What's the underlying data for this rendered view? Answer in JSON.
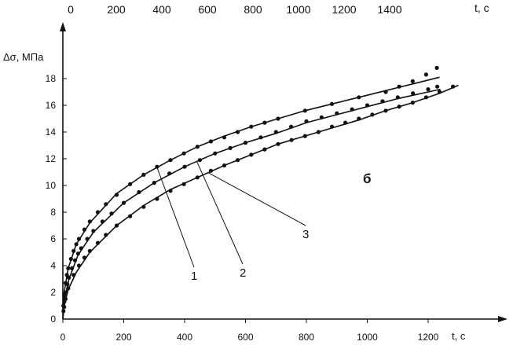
{
  "chart_data": {
    "type": "scatter",
    "title": "",
    "ylabel": "Δσ, МПа",
    "xlabel_bottom": "t, с",
    "xlabel_top": "t, с",
    "panel_label": "б",
    "ylim": [
      0,
      19
    ],
    "y_ticks": [
      0,
      2,
      4,
      6,
      8,
      10,
      12,
      14,
      16,
      18
    ],
    "x_bottom_lim": [
      0,
      1300
    ],
    "x_bottom_ticks": [
      0,
      200,
      400,
      600,
      800,
      1000,
      1200
    ],
    "x_top_lim": [
      0,
      1450
    ],
    "x_top_ticks": [
      0,
      200,
      400,
      600,
      800,
      1000,
      1200,
      1400
    ],
    "series": [
      {
        "name": "1",
        "axis": "top",
        "x": [
          2,
          5,
          10,
          15,
          20,
          30,
          40,
          50,
          60,
          80,
          100,
          130,
          160,
          200,
          250,
          300,
          350,
          400,
          450,
          500,
          550,
          600,
          650,
          700,
          750,
          800,
          900,
          1000,
          1100,
          1200,
          1250,
          1300,
          1350,
          1390
        ],
        "y": [
          1.0,
          1.8,
          2.7,
          3.3,
          3.8,
          4.5,
          5.1,
          5.6,
          6.0,
          6.7,
          7.3,
          8.0,
          8.6,
          9.3,
          10.1,
          10.8,
          11.4,
          11.9,
          12.4,
          12.9,
          13.3,
          13.6,
          14.0,
          14.4,
          14.7,
          15.0,
          15.6,
          16.1,
          16.6,
          17.0,
          17.4,
          17.8,
          18.3,
          18.8
        ],
        "fit_x": [
          0,
          5,
          20,
          50,
          100,
          200,
          300,
          400,
          500,
          600,
          700,
          800,
          900,
          1000,
          1100,
          1200,
          1300,
          1400
        ],
        "fit_y": [
          0,
          2.0,
          3.8,
          5.6,
          7.2,
          9.4,
          10.8,
          11.9,
          12.9,
          13.7,
          14.4,
          15.0,
          15.6,
          16.1,
          16.6,
          17.1,
          17.6,
          18.1
        ]
      },
      {
        "name": "2",
        "axis": "bottom",
        "x": [
          2,
          5,
          10,
          15,
          20,
          30,
          40,
          50,
          60,
          80,
          100,
          130,
          160,
          200,
          250,
          300,
          350,
          400,
          450,
          500,
          550,
          600,
          650,
          700,
          750,
          800,
          850,
          900,
          950,
          1000,
          1050,
          1100,
          1150,
          1200,
          1230
        ],
        "y": [
          0.6,
          1.3,
          2.0,
          2.6,
          3.1,
          3.8,
          4.4,
          4.9,
          5.3,
          6.0,
          6.6,
          7.3,
          7.9,
          8.7,
          9.5,
          10.2,
          10.9,
          11.4,
          11.9,
          12.4,
          12.8,
          13.2,
          13.6,
          14.0,
          14.4,
          14.8,
          15.1,
          15.4,
          15.7,
          16.0,
          16.3,
          16.6,
          16.9,
          17.2,
          17.4
        ],
        "fit_x": [
          0,
          5,
          20,
          50,
          100,
          200,
          300,
          400,
          500,
          600,
          700,
          800,
          900,
          1000,
          1100,
          1200,
          1240
        ],
        "fit_y": [
          0,
          1.4,
          3.0,
          4.8,
          6.5,
          8.7,
          10.2,
          11.4,
          12.4,
          13.2,
          13.9,
          14.7,
          15.3,
          15.9,
          16.5,
          17.0,
          17.2
        ]
      },
      {
        "name": "3",
        "axis": "top",
        "x": [
          5,
          10,
          20,
          40,
          60,
          80,
          100,
          130,
          160,
          200,
          250,
          300,
          350,
          400,
          450,
          500,
          550,
          600,
          650,
          700,
          750,
          800,
          850,
          900,
          950,
          1000,
          1050,
          1100,
          1150,
          1200,
          1250,
          1300,
          1350,
          1400,
          1450
        ],
        "y": [
          0.9,
          1.5,
          2.3,
          3.3,
          4.0,
          4.6,
          5.1,
          5.7,
          6.3,
          7.0,
          7.7,
          8.4,
          9.0,
          9.6,
          10.1,
          10.6,
          11.1,
          11.5,
          11.9,
          12.3,
          12.7,
          13.1,
          13.4,
          13.7,
          14.0,
          14.4,
          14.7,
          15.0,
          15.3,
          15.6,
          15.9,
          16.2,
          16.6,
          17.0,
          17.4
        ],
        "fit_x": [
          0,
          5,
          20,
          50,
          100,
          200,
          300,
          400,
          500,
          600,
          700,
          800,
          900,
          1000,
          1100,
          1200,
          1300,
          1400,
          1470
        ],
        "fit_y": [
          0,
          1.0,
          2.2,
          3.5,
          5.0,
          7.0,
          8.5,
          9.7,
          10.6,
          11.5,
          12.3,
          13.1,
          13.7,
          14.3,
          14.9,
          15.6,
          16.2,
          16.9,
          17.5
        ]
      }
    ],
    "annotations": [
      {
        "text": "1",
        "target_series": "1",
        "target_x": 350
      },
      {
        "text": "2",
        "target_series": "2",
        "target_x": 440
      },
      {
        "text": "3",
        "target_series": "3",
        "target_x": 540
      }
    ],
    "grid": false,
    "legend": "none"
  }
}
